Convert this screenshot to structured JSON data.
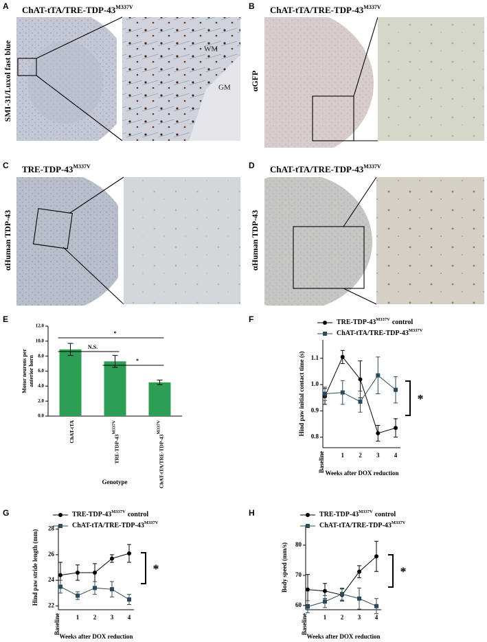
{
  "panels": [
    {
      "letter": "A",
      "title": "ChAT-tTA/TRE-TDP-43",
      "title_superscript": "M337V",
      "side_label": "SMI-31/Luxol fast blue",
      "inset_labels": [
        "WM",
        "GM"
      ]
    },
    {
      "letter": "B",
      "title": "ChAT-tTA/TRE-TDP-43",
      "title_superscript": "M337V",
      "side_label": "αGFP"
    },
    {
      "letter": "C",
      "title": "TRE-TDP-43",
      "title_superscript": "M337V",
      "side_label": "αHuman TDP-43"
    },
    {
      "letter": "D",
      "title": "ChAT-tTA/TRE-TDP-43",
      "title_superscript": "M337V",
      "side_label": "αHuman TDP-43"
    }
  ],
  "chart_data": [
    {
      "type": "bar",
      "panel_label": "E",
      "ylabel_lines": [
        "Motor neurons per",
        "anterior horn"
      ],
      "xlabel": "Genotype",
      "categories": [
        "ChAT-tTA",
        "TRE-TDP-43",
        "ChAT-tTA/TRE-TDP-43"
      ],
      "category_superscripts": {
        "1": "M337V",
        "2": "M337V"
      },
      "values": [
        8.9,
        7.3,
        4.5
      ],
      "errors": [
        0.8,
        0.8,
        0.3
      ],
      "color": "#2f9e55",
      "ylim": [
        0,
        12
      ],
      "yticks": [
        {
          "value": 0,
          "label": "0.0"
        },
        {
          "value": 2,
          "label": "2.0"
        },
        {
          "value": 4,
          "label": "4.0"
        },
        {
          "value": 6,
          "label": "6.0"
        },
        {
          "value": 8,
          "label": "8.0"
        },
        {
          "value": 10,
          "label": "10.0"
        },
        {
          "value": 12,
          "label": "12.0"
        }
      ],
      "annotations": [
        "*",
        "N.S.",
        "*"
      ]
    },
    {
      "type": "line",
      "panel_label": "F",
      "ylabel": "Hind paw initial contact time  (s)",
      "xlabel": "Weeks after DOX reduction",
      "categories": [
        "Baseline",
        "1",
        "2",
        "3",
        "4"
      ],
      "series": [
        {
          "name": "TRE-TDP-43",
          "name_superscript": "M337V",
          "name_after": "control",
          "color": "#000000",
          "marker": "circle",
          "values": [
            0.955,
            1.105,
            1.02,
            0.815,
            0.835
          ],
          "errors": [
            0.03,
            0.025,
            0.07,
            0.03,
            0.035
          ]
        },
        {
          "name": "ChAT-tTA/TRE-TDP-43",
          "name_superscript": "M337V",
          "color": "#2e4a5a",
          "marker": "square",
          "values": [
            0.965,
            0.97,
            0.935,
            1.035,
            0.98
          ],
          "errors": [
            0.025,
            0.045,
            0.04,
            0.07,
            0.05
          ]
        }
      ],
      "ylim": [
        0.76,
        1.17
      ],
      "yticks": [
        0.8,
        0.9,
        {
          "value": 1.0,
          "label": "1.0"
        },
        1.1
      ],
      "significance": "*"
    },
    {
      "type": "line",
      "panel_label": "G",
      "ylabel": "Hind paw stride length (mm)",
      "xlabel": "Weeks after DOX reduction",
      "categories": [
        "Baseline",
        "1",
        "2",
        "3",
        "4"
      ],
      "series": [
        {
          "name": "TRE-TDP-43",
          "name_superscript": "M337V",
          "name_after": "control",
          "color": "#000000",
          "marker": "circle",
          "values": [
            24.4,
            24.6,
            24.6,
            25.7,
            26.1
          ],
          "errors": [
            1.0,
            0.6,
            0.7,
            0.3,
            0.7
          ]
        },
        {
          "name": "ChAT-tTA/TRE-TDP-43",
          "name_superscript": "M337V",
          "color": "#2e4a5a",
          "marker": "square",
          "values": [
            23.5,
            22.8,
            23.4,
            23.3,
            22.5
          ],
          "errors": [
            0.5,
            0.3,
            0.5,
            0.6,
            0.4
          ]
        }
      ],
      "ylim": [
        21.7,
        28.3
      ],
      "yticks": [
        22,
        24,
        26,
        28
      ],
      "significance": "*"
    },
    {
      "type": "line",
      "panel_label": "H",
      "ylabel": "Body speed  (mm/s)",
      "xlabel": "Weeks after DOX reduction",
      "categories": [
        "Baseline",
        "1",
        "2",
        "3",
        "4"
      ],
      "series": [
        {
          "name": "TRE-TDP-43",
          "name_superscript": "M337V",
          "name_after": "control",
          "color": "#000000",
          "marker": "circle",
          "values": [
            65.3,
            64.8,
            63.5,
            71.2,
            76.3
          ],
          "errors": [
            5,
            2.5,
            2,
            2,
            5
          ]
        },
        {
          "name": "ChAT-tTA/TRE-TDP-43",
          "name_superscript": "M337V",
          "color": "#2e4a5a",
          "marker": "square",
          "values": [
            59.6,
            61.3,
            63.8,
            62.3,
            59.8
          ],
          "errors": [
            2,
            2,
            2,
            3.5,
            2.5
          ]
        }
      ],
      "ylim": [
        58.6,
        86.6
      ],
      "yticks": [
        60,
        70,
        80
      ],
      "significance": "*"
    }
  ]
}
